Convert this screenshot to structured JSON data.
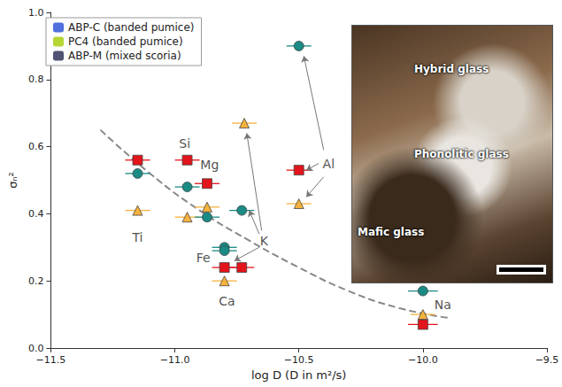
{
  "chart_data": {
    "type": "scatter",
    "xlabel": "log D (D in m²/s)",
    "ylabel": "σₙ²",
    "xlim": [
      -11.5,
      -9.5
    ],
    "xticks": [
      {
        "value": -11.5,
        "label": "−11.5"
      },
      {
        "value": -11,
        "label": "−11.0"
      },
      {
        "value": -10.5,
        "label": "−10.5"
      },
      {
        "value": -10,
        "label": "−10.0"
      },
      {
        "value": -9.5,
        "label": "−9.5"
      }
    ],
    "ylim": [
      0,
      1
    ],
    "yticks": [
      {
        "value": 0,
        "label": "0.0"
      },
      0.2,
      0.4,
      0.6,
      0.8,
      {
        "value": 1,
        "label": "1.0"
      }
    ],
    "grid": false,
    "legend": "upper left",
    "series": [
      {
        "name": "ABP-C (banded pumice)",
        "color": "#f6b23c",
        "marker": "triangle",
        "x": [
          -11.15,
          -10.95,
          -10.87,
          -10.8,
          -10.72,
          -10.5,
          -10.0
        ],
        "values": [
          0.41,
          0.39,
          0.42,
          0.2,
          0.67,
          0.43,
          0.1
        ],
        "x_err": [
          0.05,
          0.05,
          0.05,
          0.05,
          0.05,
          0.05,
          0.05
        ]
      },
      {
        "name": "PC4 (banded pumice)",
        "color": "#e3141b",
        "marker": "square",
        "x": [
          -11.15,
          -10.95,
          -10.87,
          -10.8,
          -10.73,
          -10.5,
          -10.0
        ],
        "values": [
          0.56,
          0.56,
          0.49,
          0.24,
          0.24,
          0.53,
          0.07
        ],
        "x_err": [
          0.05,
          0.05,
          0.05,
          0.05,
          0.05,
          0.05,
          0.06
        ]
      },
      {
        "name": "ABP-M (mixed scoria)",
        "color": "#1a8a85",
        "marker": "circle",
        "x": [
          -11.15,
          -10.95,
          -10.87,
          -10.8,
          -10.8,
          -10.73,
          -10.5,
          -10.0
        ],
        "values": [
          0.52,
          0.48,
          0.39,
          0.3,
          0.29,
          0.41,
          0.9,
          0.17
        ],
        "x_err": [
          0.05,
          0.05,
          0.05,
          0.05,
          0.05,
          0.05,
          0.05,
          0.06
        ]
      }
    ],
    "fit_curve": {
      "color": "#888888",
      "line_style": "dashed",
      "x": [
        -11.3,
        -11.1,
        -10.9,
        -10.7,
        -10.5,
        -10.3,
        -10.1,
        -9.9
      ],
      "values": [
        0.65,
        0.52,
        0.41,
        0.32,
        0.24,
        0.17,
        0.12,
        0.09
      ]
    },
    "annotations": [
      {
        "text": "Ti",
        "x": -11.15,
        "y": 0.33
      },
      {
        "text": "Si",
        "x": -10.96,
        "y": 0.61
      },
      {
        "text": "Mg",
        "x": -10.86,
        "y": 0.545
      },
      {
        "text": "Fe",
        "x": -10.885,
        "y": 0.27
      },
      {
        "text": "Ca",
        "x": -10.79,
        "y": 0.14
      },
      {
        "text": "Na",
        "x": -9.92,
        "y": 0.13
      },
      {
        "text": "K",
        "x": -10.64,
        "y": 0.32,
        "arrows": [
          {
            "from": [
              -10.65,
              0.35
            ],
            "to": [
              -10.71,
              0.64
            ]
          },
          {
            "from": [
              -10.66,
              0.34
            ],
            "to": [
              -10.7,
              0.41
            ]
          },
          {
            "from": [
              -10.66,
              0.3
            ],
            "to": [
              -10.76,
              0.26
            ]
          }
        ]
      },
      {
        "text": "Al",
        "x": -10.38,
        "y": 0.55,
        "arrows": [
          {
            "from": [
              -10.4,
              0.59
            ],
            "to": [
              -10.48,
              0.87
            ]
          },
          {
            "from": [
              -10.42,
              0.55
            ],
            "to": [
              -10.47,
              0.53
            ]
          },
          {
            "from": [
              -10.4,
              0.51
            ],
            "to": [
              -10.47,
              0.45
            ]
          }
        ]
      }
    ]
  },
  "inset": {
    "labels": [
      "Hybrid glass",
      "Phonolitic glass",
      "Mafic glass"
    ]
  }
}
